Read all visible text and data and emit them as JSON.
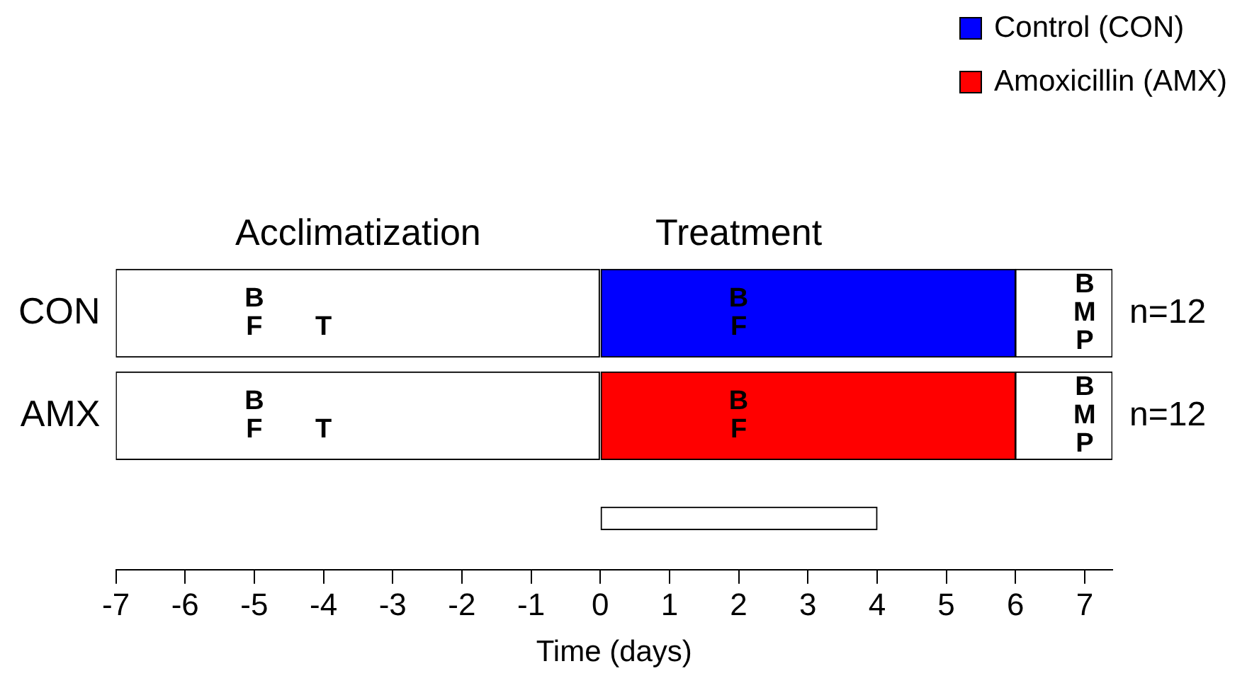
{
  "chart_data": {
    "type": "bar",
    "orientation": "horizontal",
    "xlabel": "Time (days)",
    "categories": [
      "CON",
      "AMX",
      null
    ],
    "series": [
      {
        "color": "#ffffff",
        "base": [
          -7,
          -7,
          null
        ],
        "values": [
          7,
          7,
          null
        ]
      },
      {
        "name": "Control (CON)",
        "color": "#0000ff",
        "base": [
          0,
          null,
          null
        ],
        "values": [
          6,
          null,
          null
        ]
      },
      {
        "name": "Amoxicillin (AMX)",
        "color": "#ff0000",
        "base": [
          null,
          0,
          null
        ],
        "values": [
          null,
          6,
          null
        ]
      },
      {
        "color": "#ffffff",
        "base": [
          6,
          6,
          null
        ],
        "values": [
          1.4,
          1.4,
          null
        ]
      },
      {
        "color": "#ffffff",
        "base": [
          null,
          null,
          0
        ],
        "values": [
          null,
          null,
          4
        ]
      }
    ],
    "xlim": [
      -7,
      7.4
    ],
    "xticks": [
      -7,
      -6,
      -5,
      -4,
      -3,
      -2,
      -1,
      0,
      1,
      2,
      3,
      4,
      5,
      6,
      7
    ],
    "legend": "top right",
    "annotations": [
      "Acclimatization",
      "Treatment",
      "B",
      "F",
      "T",
      "B",
      "F",
      "B",
      "M",
      "P",
      "B",
      "F",
      "T",
      "B",
      "F",
      "B",
      "M",
      "P",
      "n=12",
      "n=12"
    ]
  }
}
